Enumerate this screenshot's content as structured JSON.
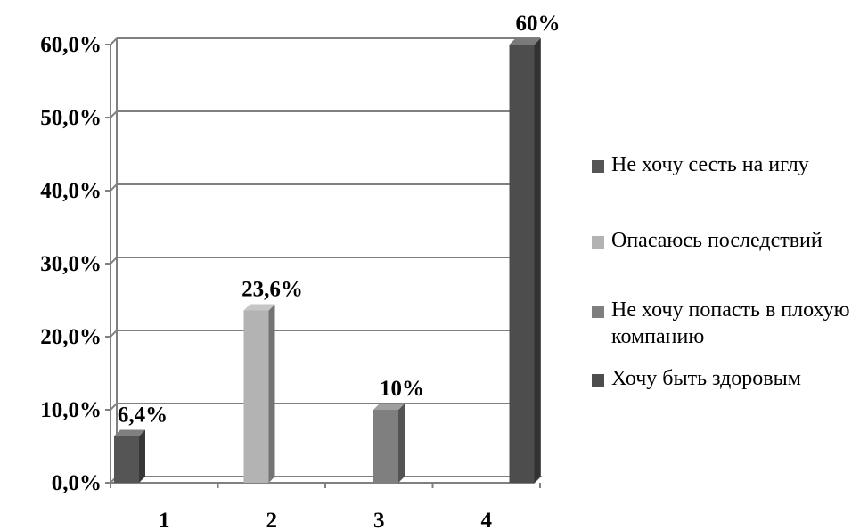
{
  "chart_data": {
    "type": "bar",
    "categories": [
      "1",
      "2",
      "3",
      "4"
    ],
    "series": [
      {
        "name": "Не хочу сесть на иглу",
        "color": "#555555",
        "values": [
          6.4,
          null,
          null,
          null
        ],
        "label": "6,4%"
      },
      {
        "name": "Опасаюсь последствий",
        "color": "#b3b3b3",
        "values": [
          null,
          23.6,
          null,
          null
        ],
        "label": "23,6%"
      },
      {
        "name": "Не хочу попасть в плохую компанию",
        "color": "#7f7f7f",
        "values": [
          null,
          null,
          10,
          null
        ],
        "label": "10%"
      },
      {
        "name": "Хочу быть здоровым",
        "color": "#4d4d4d",
        "values": [
          null,
          null,
          null,
          60
        ],
        "label": "60%"
      }
    ],
    "ylim": [
      0,
      60
    ],
    "yticks": [
      0,
      10,
      20,
      30,
      40,
      50,
      60
    ],
    "ytick_labels": [
      "0,0%",
      "10,0%",
      "20,0%",
      "30,0%",
      "40,0%",
      "50,0%",
      "60,0%"
    ],
    "grid": true,
    "legend_position": "right",
    "title": "",
    "xlabel": "",
    "ylabel": ""
  }
}
